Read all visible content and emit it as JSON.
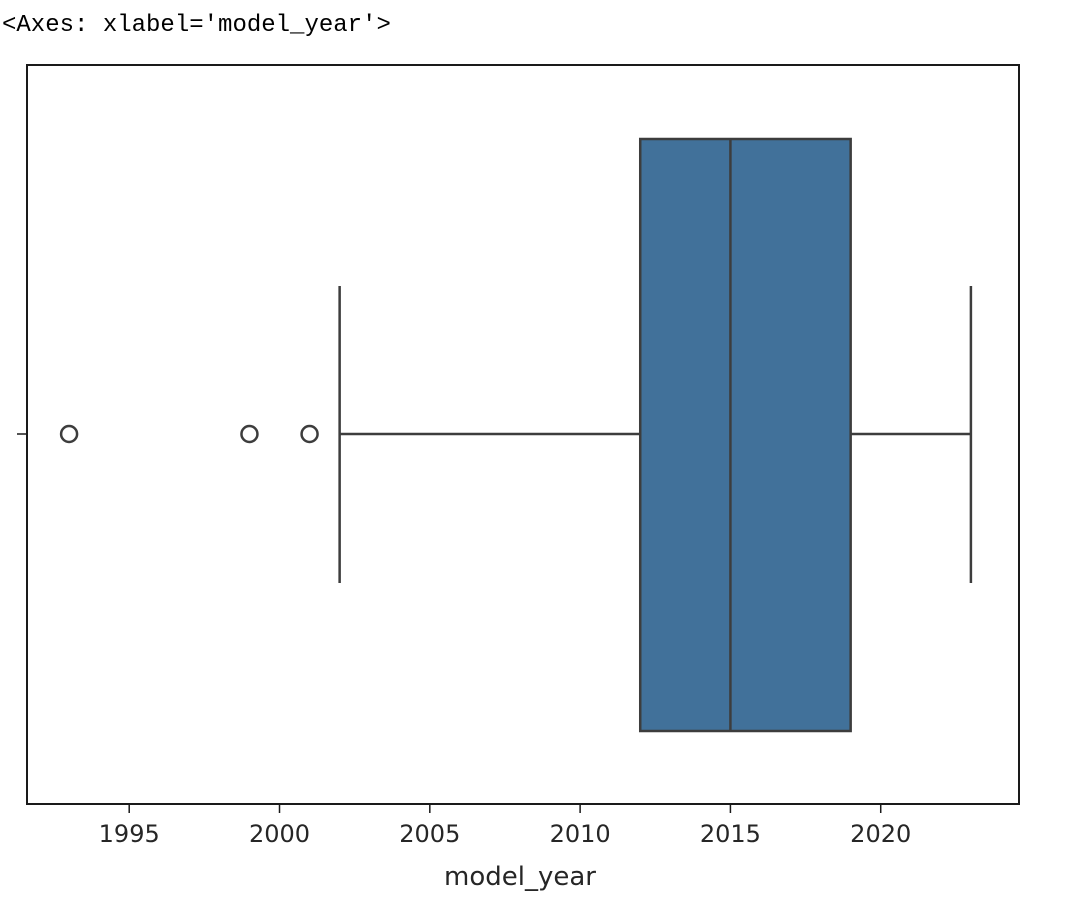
{
  "output": {
    "repr": "<Axes: xlabel='model_year'>"
  },
  "chart_data": {
    "type": "box",
    "orientation": "horizontal",
    "xlabel": "model_year",
    "ylabel": "",
    "title": "",
    "xlim": [
      1991.6,
      2024.6
    ],
    "xticks": [
      1995,
      2000,
      2005,
      2010,
      2015,
      2020
    ],
    "grid": false,
    "box": {
      "whisker_low": 2002,
      "q1": 2012,
      "median": 2015,
      "q3": 2019,
      "whisker_high": 2023,
      "outliers": [
        1993,
        1999,
        2001
      ]
    },
    "colors": {
      "box_fill": "#41719a",
      "line": "#3d3d3d",
      "axes": "#1a1a1a"
    }
  }
}
